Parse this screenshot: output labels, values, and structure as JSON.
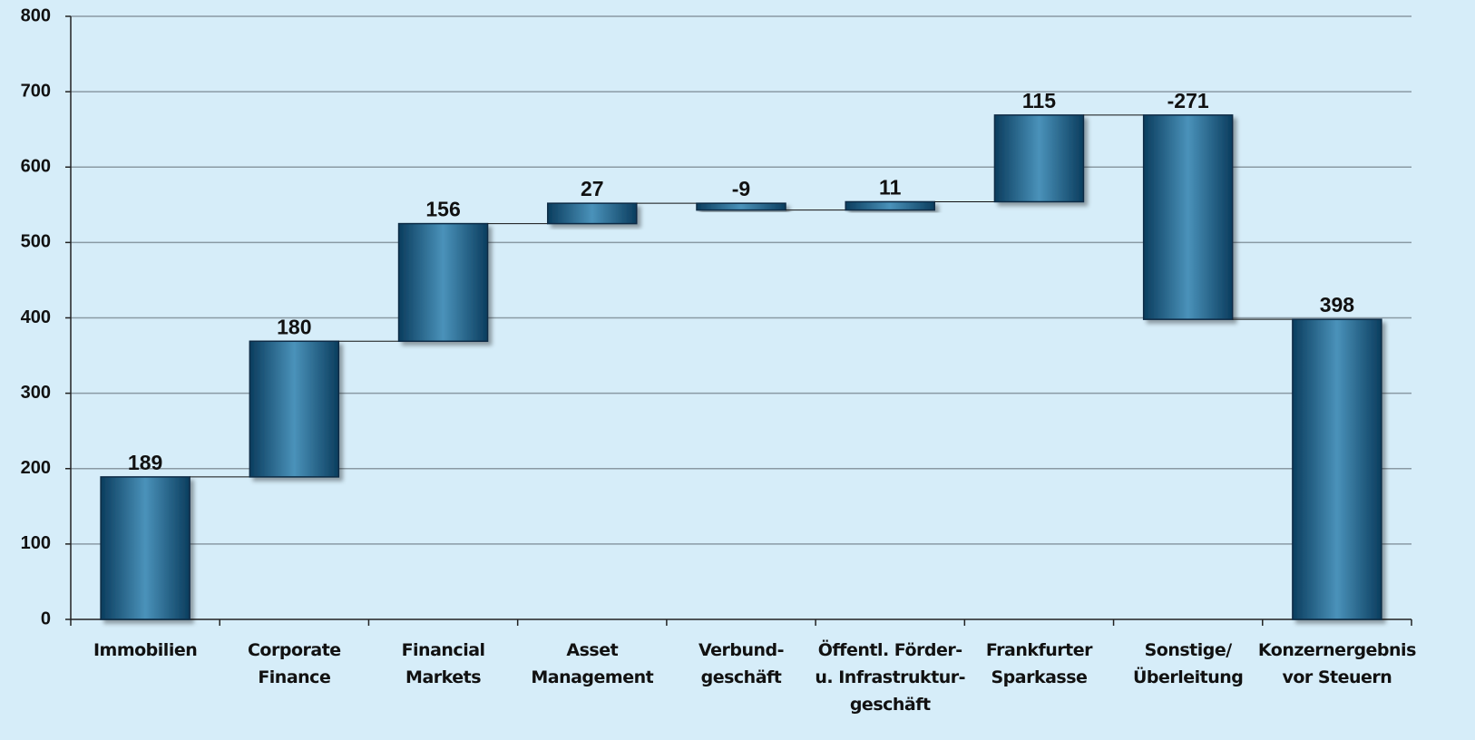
{
  "chart_data": {
    "type": "waterfall",
    "categories": [
      [
        "Immobilien"
      ],
      [
        "Corporate",
        "Finance"
      ],
      [
        "Financial",
        "Markets"
      ],
      [
        "Asset",
        "Management"
      ],
      [
        "Verbund-",
        "geschäft"
      ],
      [
        "Öffentl. Förder-",
        "u. Infrastruktur-",
        "geschäft"
      ],
      [
        "Frankfurter",
        "Sparkasse"
      ],
      [
        "Sonstige/",
        "Überleitung"
      ],
      [
        "Konzernergebnis",
        "vor Steuern"
      ]
    ],
    "values": [
      189,
      180,
      156,
      27,
      -9,
      11,
      115,
      -271,
      398
    ],
    "last_is_total": true,
    "color": "#1f5f88",
    "ylim": [
      0,
      800
    ],
    "yticks": [
      0,
      100,
      200,
      300,
      400,
      500,
      600,
      700,
      800
    ],
    "grid": true
  }
}
